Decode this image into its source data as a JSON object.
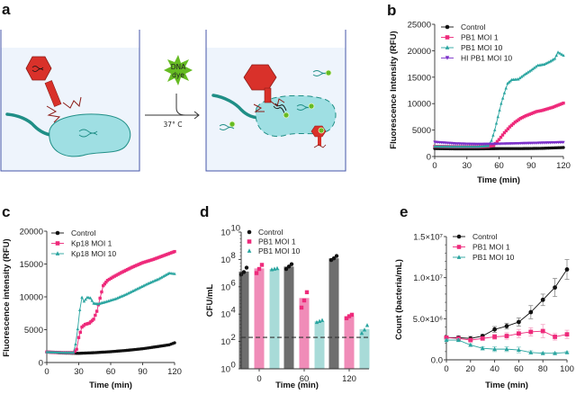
{
  "panels": {
    "a": {
      "letter": "a",
      "dye_label_1": "DNA",
      "dye_label_2": "dye",
      "temperature": "37° C"
    },
    "b": {
      "letter": "b"
    },
    "c": {
      "letter": "c"
    },
    "d": {
      "letter": "d"
    },
    "e": {
      "letter": "e"
    }
  },
  "colors": {
    "control": "#111111",
    "moi1": "#ee2a7b",
    "moi10": "#2aa5a0",
    "hi": "#7a2fc9",
    "bar_control": "#6e6e6e",
    "bar_moi1": "#f08cb8",
    "bar_moi10": "#a8dbd8",
    "phage_red": "#d9312a",
    "bacterium": "#9fdfe3",
    "bacterium_edge": "#1f8e86",
    "dye_green": "#66bb22",
    "well_fill": "#eef4fc",
    "well_edge": "#4456a8"
  },
  "chart_data": [
    {
      "id": "b",
      "type": "line",
      "xlabel": "Time (min)",
      "ylabel": "Fluorescence Intensity (RFU)",
      "xlim": [
        0,
        120
      ],
      "ylim": [
        0,
        25000
      ],
      "xticks": [
        "0",
        "30",
        "60",
        "90",
        "120"
      ],
      "yticks": [
        "0",
        "5000",
        "10000",
        "15000",
        "20000",
        "25000"
      ],
      "legend": "top-left",
      "series": [
        {
          "name": "Control",
          "key": "control",
          "marker": "circle",
          "x": [
            0,
            20,
            40,
            60,
            80,
            100,
            120
          ],
          "y": [
            1500,
            1450,
            1450,
            1500,
            1500,
            1550,
            1700
          ]
        },
        {
          "name": "PB1 MOI 1",
          "key": "moi1",
          "marker": "square",
          "x": [
            0,
            20,
            40,
            50,
            55,
            60,
            65,
            70,
            75,
            80,
            85,
            90,
            95,
            100,
            105,
            110,
            115,
            120
          ],
          "y": [
            1900,
            1850,
            1850,
            1900,
            2100,
            3200,
            4500,
            5600,
            6500,
            7200,
            7700,
            8100,
            8500,
            8700,
            9000,
            9300,
            9700,
            10100
          ]
        },
        {
          "name": "PB1 MOI 10",
          "key": "moi10",
          "marker": "triangle",
          "x": [
            0,
            20,
            40,
            50,
            53,
            56,
            59,
            62,
            65,
            68,
            72,
            78,
            84,
            90,
            96,
            102,
            108,
            112,
            115,
            120
          ],
          "y": [
            1900,
            1850,
            1850,
            2000,
            3000,
            5000,
            7500,
            10000,
            12000,
            13800,
            14500,
            14600,
            15500,
            16300,
            17200,
            17400,
            18000,
            18500,
            19700,
            19100
          ]
        },
        {
          "name": "HI PB1 MOI 10",
          "key": "hi",
          "marker": "triangle-down",
          "x": [
            0,
            20,
            40,
            60,
            80,
            100,
            120
          ],
          "y": [
            2700,
            2400,
            2300,
            2350,
            2450,
            2550,
            2650
          ]
        }
      ]
    },
    {
      "id": "c",
      "type": "line",
      "xlabel": "Time (min)",
      "ylabel": "Fluorescence intensity (RFU)",
      "xlim": [
        0,
        120
      ],
      "ylim": [
        0,
        20000
      ],
      "xticks": [
        "0",
        "30",
        "60",
        "90",
        "120"
      ],
      "yticks": [
        "0",
        "5000",
        "10000",
        "15000",
        "20000"
      ],
      "legend": "top-left",
      "series": [
        {
          "name": "Control",
          "key": "control",
          "marker": "circle",
          "x": [
            0,
            15,
            30,
            45,
            60,
            75,
            90,
            105,
            115,
            120
          ],
          "y": [
            1600,
            1450,
            1400,
            1500,
            1650,
            1850,
            2100,
            2450,
            2700,
            3000
          ]
        },
        {
          "name": "Kp18 MOI 1",
          "key": "moi1",
          "marker": "square",
          "x": [
            0,
            15,
            25,
            28,
            30,
            33,
            36,
            40,
            44,
            47,
            50,
            53,
            57,
            62,
            70,
            80,
            90,
            100,
            110,
            120
          ],
          "y": [
            1600,
            1500,
            1500,
            2000,
            3800,
            5400,
            5800,
            6000,
            6600,
            7800,
            9800,
            11700,
            12500,
            13000,
            13700,
            14500,
            15200,
            15700,
            16300,
            16900
          ]
        },
        {
          "name": "Kp18 MOI 10",
          "key": "moi10",
          "marker": "triangle",
          "x": [
            0,
            15,
            25,
            27,
            29,
            31,
            33,
            35,
            38,
            41,
            44,
            48,
            55,
            65,
            75,
            85,
            95,
            105,
            115,
            120
          ],
          "y": [
            1600,
            1500,
            1500,
            2800,
            5100,
            8000,
            9900,
            9300,
            9900,
            9800,
            9000,
            8900,
            9200,
            9700,
            10400,
            11200,
            12000,
            12700,
            13600,
            13500
          ]
        }
      ]
    },
    {
      "id": "d",
      "type": "bar",
      "xlabel": "Time (min)",
      "ylabel": "CFU/mL",
      "yscale": "log",
      "ylim": [
        1,
        10000000000
      ],
      "yticks": [
        "10^0",
        "10^2",
        "10^4",
        "10^6",
        "10^8",
        "10^10"
      ],
      "categories": [
        "0",
        "60",
        "120"
      ],
      "detection_limit": 200,
      "legend": "top-left",
      "series": [
        {
          "name": "Control",
          "key": "bar_control",
          "point_key": "control",
          "marker": "circle",
          "values": [
            13000000,
            30000000,
            120000000
          ],
          "points": [
            [
              8000000,
              12000000,
              25000000
            ],
            [
              20000000,
              30000000,
              45000000
            ],
            [
              90000000,
              120000000,
              180000000
            ]
          ]
        },
        {
          "name": "PB1 MOI 1",
          "key": "bar_moi1",
          "point_key": "moi1",
          "marker": "square",
          "values": [
            22000000,
            150000,
            7000
          ],
          "points": [
            [
              10000000,
              20000000,
              40000000
            ],
            [
              30000,
              100000,
              400000
            ],
            [
              5000,
              7000,
              9000
            ]
          ]
        },
        {
          "name": "PB1 MOI 10",
          "key": "bar_moi10",
          "point_key": "moi10",
          "marker": "triangle",
          "values": [
            20000000,
            3000,
            800
          ],
          "points": [
            [
              18000000,
              20000000,
              22000000
            ],
            [
              2500,
              3000,
              3500
            ],
            [
              400,
              700,
              1500
            ]
          ]
        }
      ]
    },
    {
      "id": "e",
      "type": "line",
      "xlabel": "Time (min)",
      "ylabel": "Count (bacteria/mL)",
      "xlim": [
        0,
        100
      ],
      "ylim": [
        0,
        15000000
      ],
      "xticks": [
        "0",
        "20",
        "40",
        "60",
        "80",
        "100"
      ],
      "yticks": [
        "0.0",
        "5.0×10⁶",
        "1.0×10⁷",
        "1.5×10⁷"
      ],
      "legend": "top-left",
      "series": [
        {
          "name": "Control",
          "key": "control",
          "marker": "circle",
          "x": [
            0,
            10,
            20,
            30,
            40,
            50,
            60,
            70,
            80,
            90,
            100
          ],
          "y": [
            2700000,
            2700000,
            2600000,
            2900000,
            3700000,
            4100000,
            4600000,
            5800000,
            7300000,
            8800000,
            11000000
          ],
          "err": [
            150000,
            200000,
            250000,
            200000,
            350000,
            350000,
            500000,
            800000,
            700000,
            1100000,
            1200000
          ]
        },
        {
          "name": "PB1 MOI 1",
          "key": "moi1",
          "marker": "square",
          "x": [
            0,
            10,
            20,
            30,
            40,
            50,
            60,
            70,
            80,
            90,
            100
          ],
          "y": [
            2700000,
            2600000,
            2400000,
            2600000,
            2800000,
            2900000,
            3200000,
            3400000,
            3500000,
            2800000,
            3100000
          ],
          "err": [
            150000,
            200000,
            200000,
            200000,
            300000,
            400000,
            500000,
            500000,
            800000,
            400000,
            500000
          ]
        },
        {
          "name": "PB1 MOI 10",
          "key": "moi10",
          "marker": "triangle",
          "x": [
            0,
            10,
            20,
            30,
            40,
            50,
            60,
            70,
            80,
            90,
            100
          ],
          "y": [
            2400000,
            2400000,
            1800000,
            1400000,
            1300000,
            1300000,
            1200000,
            900000,
            800000,
            800000,
            900000
          ],
          "err": [
            100000,
            150000,
            150000,
            200000,
            300000,
            300000,
            350000,
            200000,
            100000,
            100000,
            100000
          ]
        }
      ]
    }
  ]
}
